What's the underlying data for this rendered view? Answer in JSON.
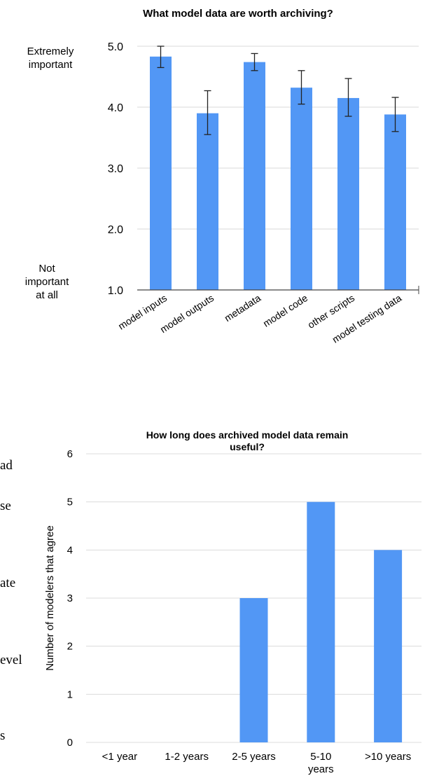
{
  "background_text": [
    "ad",
    "se",
    "ate",
    "evel",
    "s"
  ],
  "chart_data": [
    {
      "type": "bar",
      "title": "What model data are worth archiving?",
      "ylabel_top": "Extremely important",
      "ylabel_bottom": "Not important at all",
      "categories": [
        "model inputs",
        "model outputs",
        "metadata",
        "model code",
        "other scripts",
        "model testing data"
      ],
      "values": [
        4.83,
        3.9,
        4.74,
        4.32,
        4.15,
        3.88
      ],
      "error_low": [
        4.65,
        3.55,
        4.6,
        4.05,
        3.85,
        3.6
      ],
      "error_high": [
        5.0,
        4.27,
        4.88,
        4.6,
        4.47,
        4.16
      ],
      "ylim": [
        1.0,
        5.0
      ],
      "yticks": [
        "1.0",
        "2.0",
        "3.0",
        "4.0",
        "5.0"
      ],
      "grid": true,
      "bar_color": "#5297f5"
    },
    {
      "type": "bar",
      "title": "How long does archived model data remain useful?",
      "xlabel": "",
      "ylabel": "Number of modelers that agree",
      "categories": [
        "<1 year",
        "1-2 years",
        "2-5 years",
        "5-10 years",
        ">10 years"
      ],
      "values": [
        0,
        0,
        3,
        5,
        4
      ],
      "ylim": [
        0,
        6
      ],
      "yticks": [
        "0",
        "1",
        "2",
        "3",
        "4",
        "5",
        "6"
      ],
      "grid": true,
      "bar_color": "#5297f5"
    }
  ]
}
